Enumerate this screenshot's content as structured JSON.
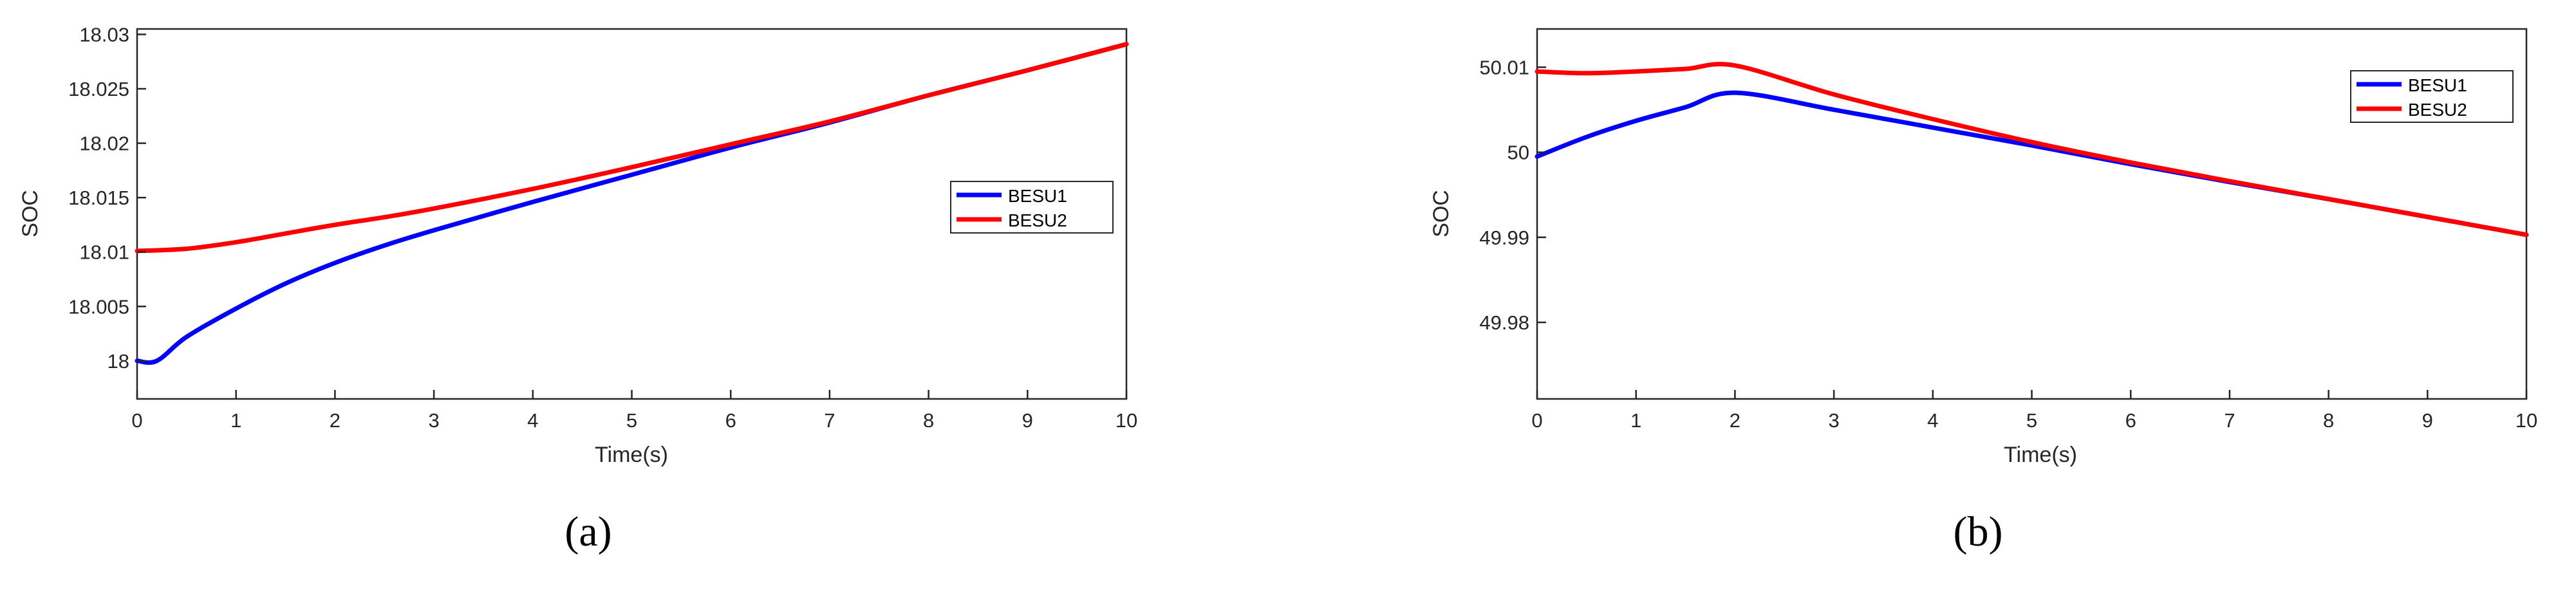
{
  "chart_data": [
    {
      "type": "line",
      "panel_label": "(a)",
      "xlabel": "Time(s)",
      "ylabel": "SOC",
      "xlim": [
        0,
        10
      ],
      "ylim": [
        17.9965,
        18.0305
      ],
      "xticks": [
        0,
        1,
        2,
        3,
        4,
        5,
        6,
        7,
        8,
        9,
        10
      ],
      "xtick_labels": [
        "0",
        "1",
        "2",
        "3",
        "4",
        "5",
        "6",
        "7",
        "8",
        "9",
        "10"
      ],
      "yticks": [
        18,
        18.005,
        18.01,
        18.015,
        18.02,
        18.025,
        18.03
      ],
      "ytick_labels": [
        "18",
        "18.005",
        "18.01",
        "18.015",
        "18.02",
        "18.025",
        "18.03"
      ],
      "grid": false,
      "legend_position": "right",
      "series": [
        {
          "name": "BESU1",
          "color": "#0000ff",
          "x": [
            0,
            0.2,
            0.5,
            1,
            1.5,
            2,
            2.5,
            3,
            4,
            5,
            6,
            7,
            8,
            9,
            10
          ],
          "y": [
            18.0,
            18.0,
            18.0022,
            18.0048,
            18.0071,
            18.009,
            18.0106,
            18.012,
            18.0146,
            18.0171,
            18.0196,
            18.0219,
            18.0244,
            18.0267,
            18.0291
          ]
        },
        {
          "name": "BESU2",
          "color": "#ff0000",
          "x": [
            0,
            0.5,
            1,
            1.5,
            2,
            2.5,
            3,
            4,
            5,
            6,
            7,
            8,
            9,
            10
          ],
          "y": [
            18.0101,
            18.0103,
            18.0109,
            18.0117,
            18.0125,
            18.0132,
            18.014,
            18.0158,
            18.0178,
            18.0199,
            18.022,
            18.0244,
            18.0267,
            18.0291
          ]
        }
      ]
    },
    {
      "type": "line",
      "panel_label": "(b)",
      "xlabel": "Time(s)",
      "ylabel": "SOC",
      "xlim": [
        0,
        10
      ],
      "ylim": [
        49.971,
        50.0145
      ],
      "xticks": [
        0,
        1,
        2,
        3,
        4,
        5,
        6,
        7,
        8,
        9,
        10
      ],
      "xtick_labels": [
        "0",
        "1",
        "2",
        "3",
        "4",
        "5",
        "6",
        "7",
        "8",
        "9",
        "10"
      ],
      "yticks": [
        49.98,
        49.99,
        50.0,
        50.01
      ],
      "ytick_labels": [
        "49.98",
        "49.99",
        "50",
        "50.01"
      ],
      "grid": false,
      "legend_position": "top-right",
      "series": [
        {
          "name": "BESU1",
          "color": "#0000ff",
          "x": [
            0,
            0.5,
            1,
            1.5,
            2,
            3,
            4,
            5,
            6,
            7,
            8,
            9,
            10
          ],
          "y": [
            49.9995,
            50.0018,
            50.0037,
            50.0053,
            50.007,
            50.005,
            50.0029,
            50.0008,
            49.9986,
            49.9965,
            49.9945,
            49.9924,
            49.9903
          ]
        },
        {
          "name": "BESU2",
          "color": "#ff0000",
          "x": [
            0,
            0.5,
            1,
            1.5,
            2,
            3,
            4,
            5,
            6,
            7,
            8,
            9,
            10
          ],
          "y": [
            50.0095,
            50.0093,
            50.0095,
            50.0098,
            50.0102,
            50.0068,
            50.0039,
            50.0012,
            49.9988,
            49.9966,
            49.9945,
            49.9924,
            49.9903
          ]
        }
      ]
    }
  ]
}
